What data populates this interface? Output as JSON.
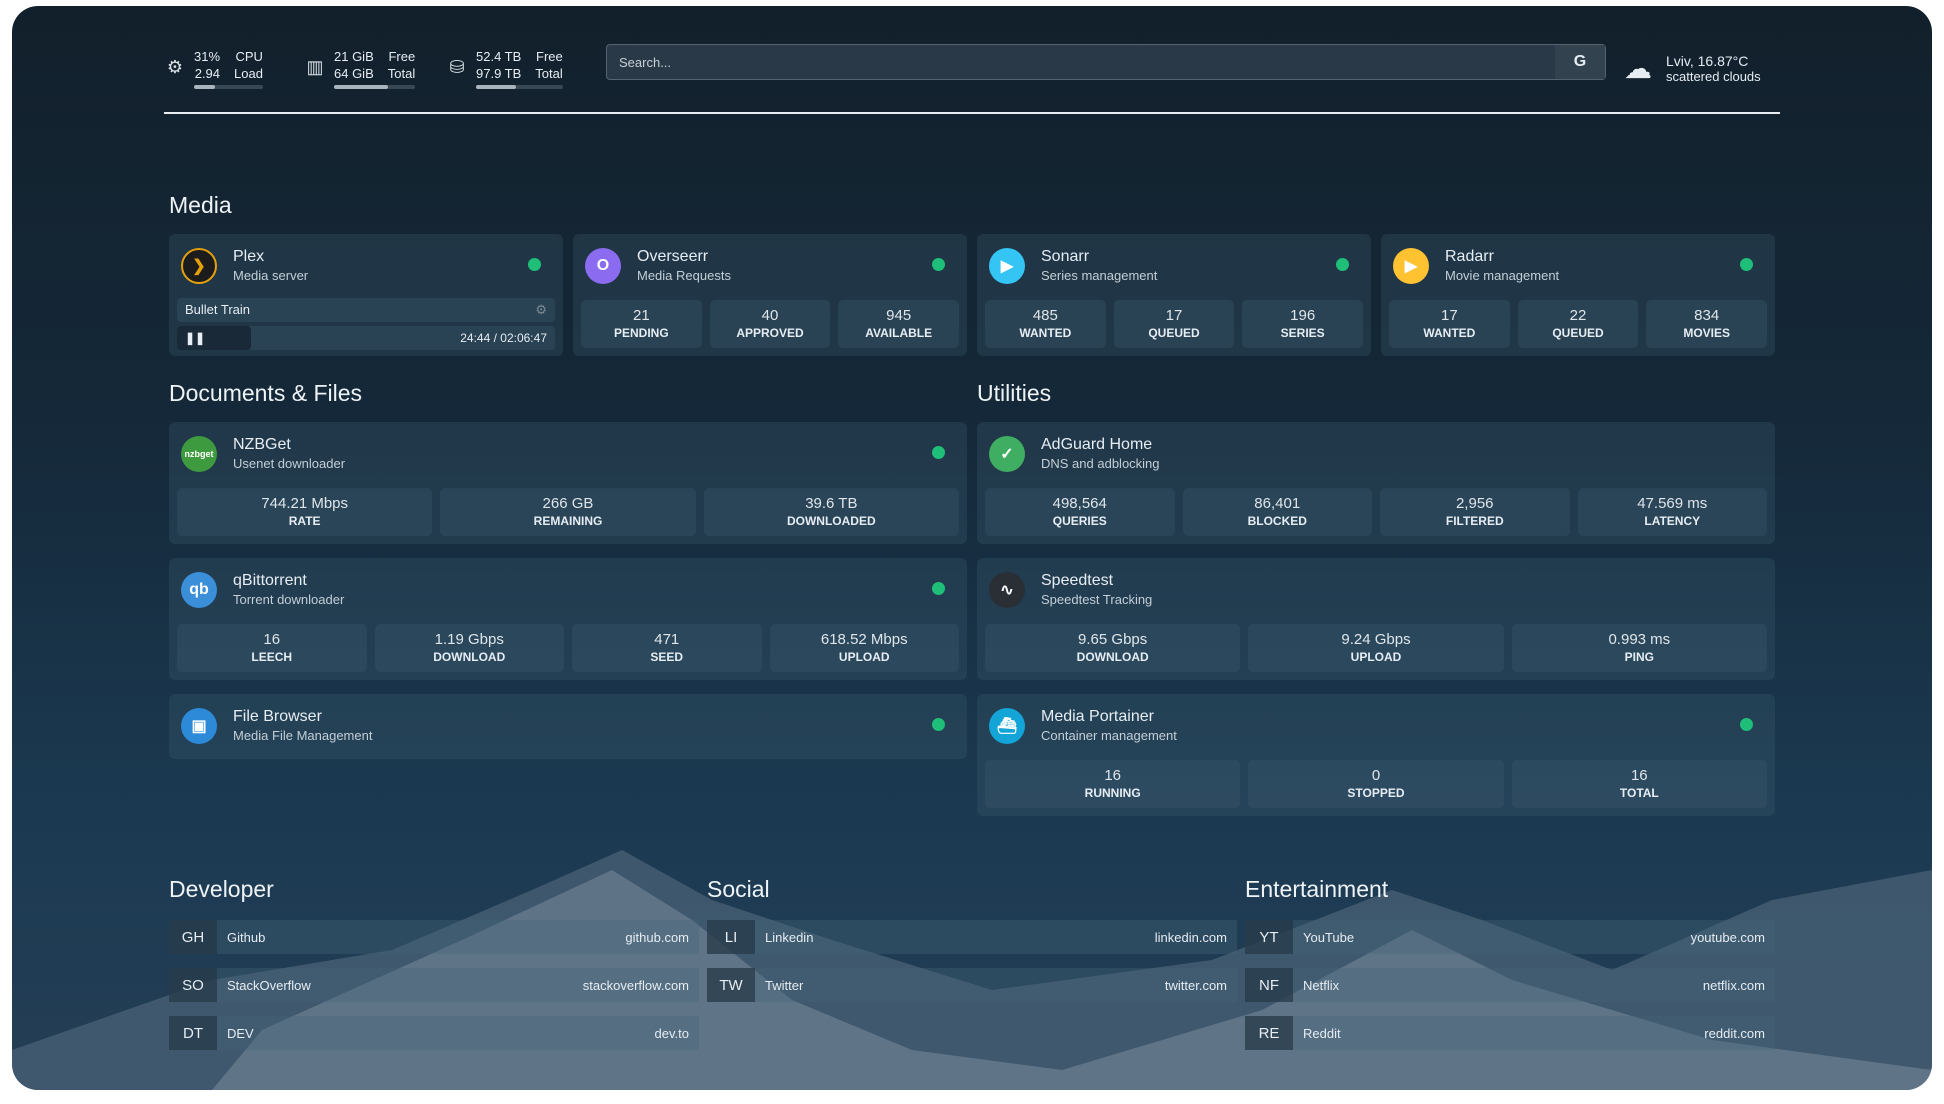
{
  "header": {
    "cpu": {
      "icon": "cpu-icon",
      "value": "31%",
      "value_label": "CPU",
      "load": "2.94",
      "load_label": "Load",
      "fill": 31
    },
    "memory": {
      "icon": "memory-icon",
      "free": "21 GiB",
      "free_label": "Free",
      "total": "64 GiB",
      "total_label": "Total",
      "fill": 67
    },
    "disk": {
      "icon": "disk-icon",
      "free": "52.4 TB",
      "free_label": "Free",
      "total": "97.9 TB",
      "total_label": "Total",
      "fill": 46
    },
    "search": {
      "placeholder": "Search...",
      "provider": "G"
    },
    "weather": {
      "icon": "cloud-icon",
      "location": "Lviv, 16.87°C",
      "condition": "scattered clouds"
    }
  },
  "sections": {
    "media": "Media",
    "documents": "Documents & Files",
    "utilities": "Utilities",
    "developer": "Developer",
    "social": "Social",
    "entertainment": "Entertainment"
  },
  "status_color": "#1fbf7a",
  "plex": {
    "name": "Plex",
    "desc": "Media server",
    "title": "Bullet Train",
    "time": "24:44 / 02:06:47",
    "progress": 19.5
  },
  "cards": [
    {
      "id": "overseerr",
      "name": "Overseerr",
      "desc": "Media Requests",
      "icon": "O",
      "color": "#8b6cf0",
      "stats": [
        {
          "v": "21",
          "l": "PENDING"
        },
        {
          "v": "40",
          "l": "APPROVED"
        },
        {
          "v": "945",
          "l": "AVAILABLE"
        }
      ]
    },
    {
      "id": "sonarr",
      "name": "Sonarr",
      "desc": "Series management",
      "icon": "▶",
      "color": "#35c5f4",
      "stats": [
        {
          "v": "485",
          "l": "WANTED"
        },
        {
          "v": "17",
          "l": "QUEUED"
        },
        {
          "v": "196",
          "l": "SERIES"
        }
      ]
    },
    {
      "id": "radarr",
      "name": "Radarr",
      "desc": "Movie management",
      "icon": "▶",
      "color": "#ffc230",
      "stats": [
        {
          "v": "17",
          "l": "WANTED"
        },
        {
          "v": "22",
          "l": "QUEUED"
        },
        {
          "v": "834",
          "l": "MOVIES"
        }
      ]
    },
    {
      "id": "nzbget",
      "name": "NZBGet",
      "desc": "Usenet downloader",
      "icon": "nzbget",
      "color": "#3e9a3e",
      "stats": [
        {
          "v": "744.21 Mbps",
          "l": "RATE"
        },
        {
          "v": "266 GB",
          "l": "REMAINING"
        },
        {
          "v": "39.6 TB",
          "l": "DOWNLOADED"
        }
      ]
    },
    {
      "id": "adguard",
      "name": "AdGuard Home",
      "desc": "DNS and adblocking",
      "icon": "✓",
      "color": "#3fae62",
      "stats": [
        {
          "v": "498,564",
          "l": "QUERIES"
        },
        {
          "v": "86,401",
          "l": "BLOCKED"
        },
        {
          "v": "2,956",
          "l": "FILTERED"
        },
        {
          "v": "47.569 ms",
          "l": "LATENCY"
        }
      ]
    },
    {
      "id": "qbittorrent",
      "name": "qBittorrent",
      "desc": "Torrent downloader",
      "icon": "qb",
      "color": "#3a8fd8",
      "stats": [
        {
          "v": "16",
          "l": "LEECH"
        },
        {
          "v": "1.19 Gbps",
          "l": "DOWNLOAD"
        },
        {
          "v": "471",
          "l": "SEED"
        },
        {
          "v": "618.52 Mbps",
          "l": "UPLOAD"
        }
      ]
    },
    {
      "id": "speedtest",
      "name": "Speedtest",
      "desc": "Speedtest Tracking",
      "icon": "∿",
      "color": "#2a2f36",
      "stats": [
        {
          "v": "9.65 Gbps",
          "l": "DOWNLOAD"
        },
        {
          "v": "9.24 Gbps",
          "l": "UPLOAD"
        },
        {
          "v": "0.993 ms",
          "l": "PING"
        }
      ]
    },
    {
      "id": "filebrowser",
      "name": "File Browser",
      "desc": "Media File Management",
      "icon": "▣",
      "color": "#2d8ad8",
      "stats": []
    },
    {
      "id": "portainer",
      "name": "Media Portainer",
      "desc": "Container management",
      "icon": "⛴",
      "color": "#13a4d8",
      "stats": [
        {
          "v": "16",
          "l": "RUNNING"
        },
        {
          "v": "0",
          "l": "STOPPED"
        },
        {
          "v": "16",
          "l": "TOTAL"
        }
      ]
    }
  ],
  "bookmarks": {
    "developer": [
      {
        "abbr": "GH",
        "name": "Github",
        "url": "github.com"
      },
      {
        "abbr": "SO",
        "name": "StackOverflow",
        "url": "stackoverflow.com"
      },
      {
        "abbr": "DT",
        "name": "DEV",
        "url": "dev.to"
      }
    ],
    "social": [
      {
        "abbr": "LI",
        "name": "Linkedin",
        "url": "linkedin.com"
      },
      {
        "abbr": "TW",
        "name": "Twitter",
        "url": "twitter.com"
      }
    ],
    "entertainment": [
      {
        "abbr": "YT",
        "name": "YouTube",
        "url": "youtube.com"
      },
      {
        "abbr": "NF",
        "name": "Netflix",
        "url": "netflix.com"
      },
      {
        "abbr": "RE",
        "name": "Reddit",
        "url": "reddit.com"
      }
    ]
  }
}
